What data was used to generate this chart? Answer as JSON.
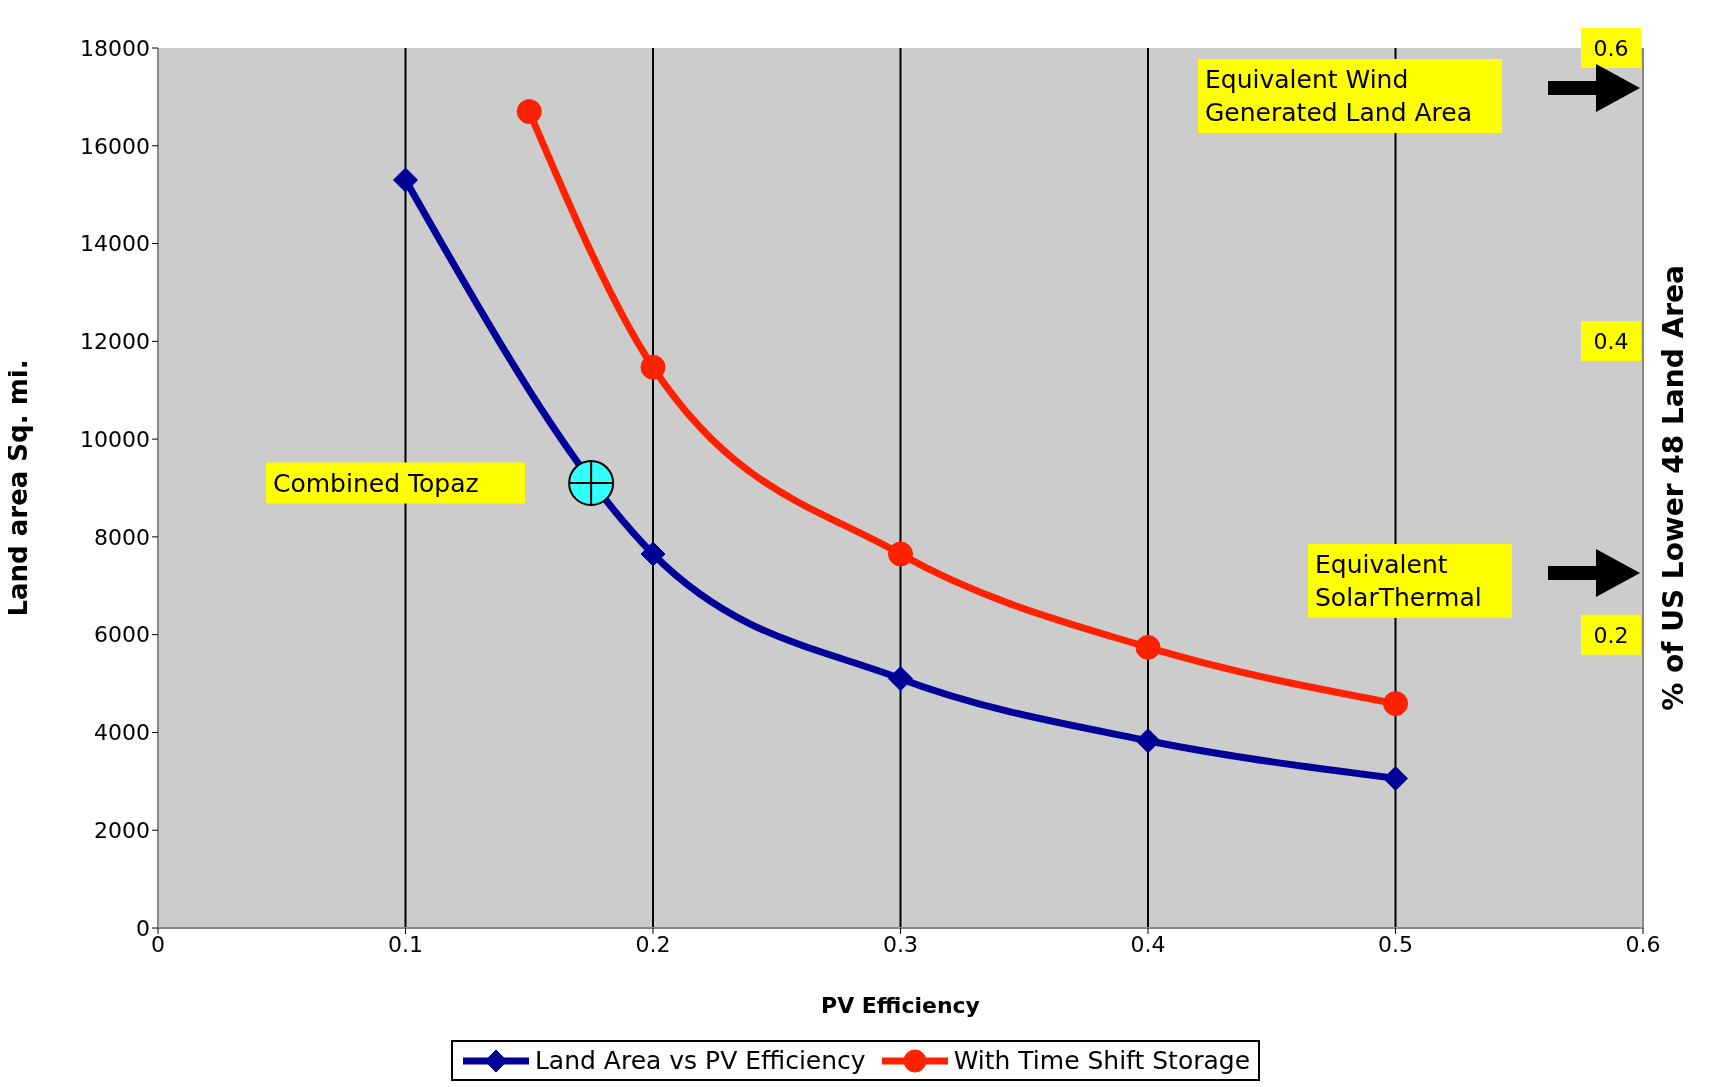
{
  "chart_data": {
    "type": "line",
    "xlabel": "PV Efficiency",
    "ylabel": "Land area  Sq. mi.",
    "y2label": "% of US Lower 48 Land Area",
    "xlim": [
      0,
      0.6
    ],
    "xticks": [
      0,
      0.1,
      0.2,
      0.3,
      0.4,
      0.5,
      0.6
    ],
    "ylim": [
      0,
      18000
    ],
    "yticks": [
      0,
      2000,
      4000,
      6000,
      8000,
      10000,
      12000,
      14000,
      16000,
      18000
    ],
    "y2lim": [
      0,
      0.6
    ],
    "y2ticks": [
      0.2,
      0.4,
      0.6
    ],
    "grid": true,
    "legend": "bottom",
    "series": [
      {
        "name": "Land Area vs PV Efficiency",
        "color": "#000099",
        "marker": "diamond",
        "x": [
          0.1,
          0.2,
          0.3,
          0.4,
          0.5
        ],
        "values": [
          15300,
          7650,
          5100,
          3830,
          3060
        ]
      },
      {
        "name": "With Time Shift Storage",
        "color": "#ff2200",
        "marker": "circle",
        "x": [
          0.15,
          0.2,
          0.3,
          0.4,
          0.5
        ],
        "values": [
          16700,
          11470,
          7650,
          5740,
          4590
        ]
      },
      {
        "type": "scatter",
        "color": "#33ffff",
        "marker": "circle",
        "x": [
          0.175
        ],
        "values": [
          9100
        ]
      }
    ],
    "annotations": [
      "Equivalent Wind Generated Land Area",
      "Equivalent SolarThermal",
      "Combined Topaz"
    ]
  }
}
